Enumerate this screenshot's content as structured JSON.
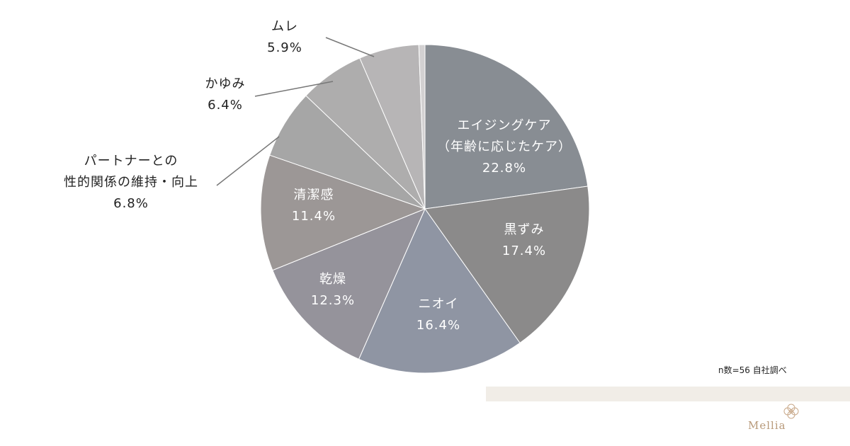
{
  "chart_data": {
    "type": "pie",
    "slices": [
      {
        "label_lines": [
          "エイジングケア",
          "（年齢に応じたケア）",
          "22.8%"
        ],
        "value": 22.8,
        "color": "#888d93",
        "label_pos": "inside"
      },
      {
        "label_lines": [
          "黒ずみ",
          "17.4%"
        ],
        "value": 17.4,
        "color": "#8b8a8a",
        "label_pos": "inside"
      },
      {
        "label_lines": [
          "ニオイ",
          "16.4%"
        ],
        "value": 16.4,
        "color": "#8f95a3",
        "label_pos": "inside"
      },
      {
        "label_lines": [
          "乾燥",
          "12.3%"
        ],
        "value": 12.3,
        "color": "#95939b",
        "label_pos": "inside"
      },
      {
        "label_lines": [
          "清潔感",
          "11.4%"
        ],
        "value": 11.4,
        "color": "#9c9796",
        "label_pos": "inside"
      },
      {
        "label_lines": [
          "パートナーとの",
          "性的関係の維持・向上",
          "6.8%"
        ],
        "value": 6.8,
        "color": "#a6a6a6",
        "label_pos": "outside"
      },
      {
        "label_lines": [
          "かゆみ",
          "6.4%"
        ],
        "value": 6.4,
        "color": "#aeadad",
        "label_pos": "outside"
      },
      {
        "label_lines": [
          "ムレ",
          "5.9%"
        ],
        "value": 5.9,
        "color": "#b7b5b6",
        "label_pos": "outside"
      },
      {
        "label_lines": [],
        "value": 0.6,
        "color": "#d3d1d2",
        "label_pos": "none"
      }
    ]
  },
  "note": "n数=56 自社調べ",
  "brand": {
    "name": "Mellia",
    "logo_icon": "flower-logo-icon"
  }
}
